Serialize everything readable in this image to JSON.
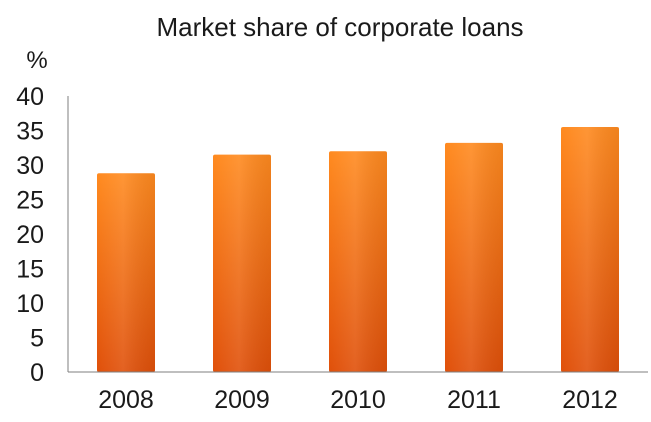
{
  "chart_data": {
    "type": "bar",
    "title": "Market share of corporate loans",
    "ylabel": "%",
    "xlabel": "",
    "categories": [
      "2008",
      "2009",
      "2010",
      "2011",
      "2012"
    ],
    "values": [
      28.8,
      31.5,
      32.0,
      33.2,
      35.5
    ],
    "ylim": [
      0,
      40
    ],
    "yticks": [
      0,
      5,
      10,
      15,
      20,
      25,
      30,
      35,
      40
    ],
    "grid": false,
    "legend": "none",
    "bar_color_light": "#ff8a1f",
    "bar_color_dark": "#e0500a",
    "axis_color": "#7f7f7f",
    "text_color": "#1a1a1a"
  }
}
